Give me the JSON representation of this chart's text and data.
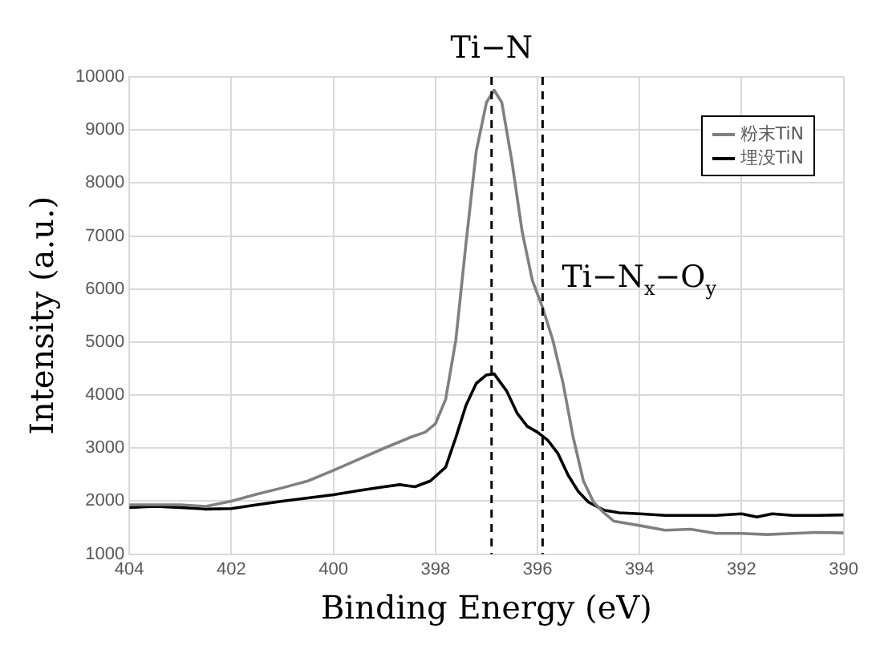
{
  "chart_data": {
    "type": "line",
    "xlabel": "Binding Energy (eV)",
    "ylabel": "Intensity (a.u.)",
    "xlim": [
      404,
      390
    ],
    "xticks": [
      404,
      402,
      400,
      398,
      396,
      394,
      392,
      390
    ],
    "ylim": [
      1000,
      10000
    ],
    "yticks": [
      1000,
      2000,
      3000,
      4000,
      5000,
      6000,
      7000,
      8000,
      9000,
      10000
    ],
    "grid": true,
    "legend": "top right",
    "marker": "none",
    "line_style": "solid",
    "series": [
      {
        "name": "粉末TiN",
        "color": "#808080",
        "x": [
          404,
          403,
          402.5,
          402,
          401.5,
          401,
          400.5,
          400,
          399.5,
          399,
          398.5,
          398.2,
          398,
          397.8,
          397.6,
          397.4,
          397.2,
          397,
          396.85,
          396.7,
          396.5,
          396.3,
          396.1,
          395.9,
          395.7,
          395.5,
          395.3,
          395.1,
          394.9,
          394.7,
          394.5,
          394,
          393.5,
          393,
          392.5,
          392,
          391.5,
          391,
          390.5,
          390
        ],
        "values": [
          1930,
          1930,
          1900,
          2000,
          2130,
          2250,
          2380,
          2580,
          2790,
          3000,
          3200,
          3300,
          3460,
          3920,
          5040,
          6870,
          8600,
          9520,
          9750,
          9520,
          8400,
          7080,
          6160,
          5650,
          5040,
          4230,
          3200,
          2380,
          1980,
          1780,
          1620,
          1540,
          1450,
          1470,
          1390,
          1390,
          1370,
          1390,
          1410,
          1400
        ]
      },
      {
        "name": "埋没TiN",
        "color": "#000000",
        "x": [
          404,
          403.5,
          403,
          402.5,
          402,
          401.5,
          401,
          400.5,
          400,
          399.5,
          399,
          398.7,
          398.4,
          398.1,
          397.8,
          397.6,
          397.4,
          397.2,
          397,
          396.85,
          396.6,
          396.4,
          396.2,
          396,
          395.8,
          395.6,
          395.4,
          395.2,
          395,
          394.7,
          394.4,
          394,
          393.5,
          393,
          392.5,
          392,
          391.7,
          391.4,
          391,
          390.5,
          390
        ],
        "values": [
          1880,
          1900,
          1880,
          1850,
          1860,
          1930,
          2000,
          2060,
          2120,
          2200,
          2270,
          2310,
          2270,
          2380,
          2640,
          3200,
          3810,
          4220,
          4380,
          4400,
          4070,
          3660,
          3410,
          3300,
          3150,
          2900,
          2490,
          2180,
          1980,
          1830,
          1780,
          1760,
          1730,
          1730,
          1730,
          1760,
          1700,
          1760,
          1730,
          1730,
          1740
        ]
      }
    ],
    "ref_lines": [
      {
        "axis": "x",
        "value": 396.9,
        "label": "Ti−N",
        "color": "#000000",
        "line_style": "dashed"
      },
      {
        "axis": "x",
        "value": 395.9,
        "label": "Ti−N$_{x}$−O$_{y}$",
        "color": "#000000",
        "line_style": "dashed"
      }
    ]
  }
}
